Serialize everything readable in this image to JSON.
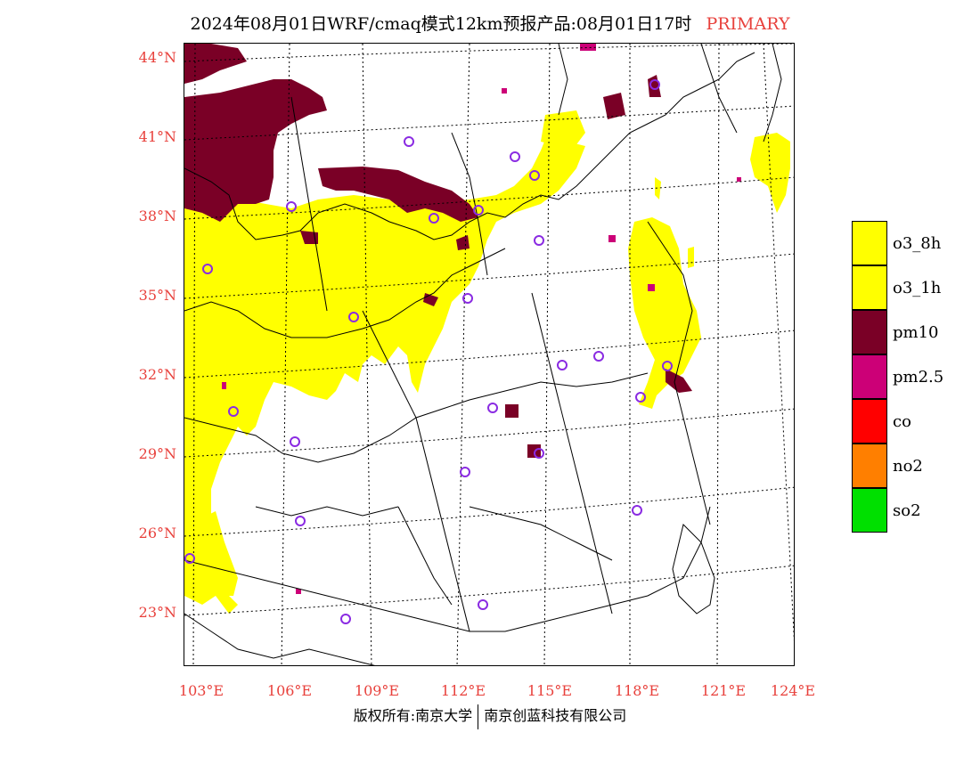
{
  "title": {
    "main": "2024年08月01日WRF/cmaq模式12km预报产品:08月01日17时",
    "tag": "PRIMARY"
  },
  "latitude_labels": [
    "44°N",
    "41°N",
    "38°N",
    "35°N",
    "32°N",
    "29°N",
    "26°N",
    "23°N"
  ],
  "longitude_labels": [
    "103°E",
    "106°E",
    "109°E",
    "112°E",
    "115°E",
    "118°E",
    "121°E",
    "124°E"
  ],
  "legend": [
    {
      "label": "o3_8h",
      "color": "#ffff00"
    },
    {
      "label": "o3_1h",
      "color": "#ffff00"
    },
    {
      "label": "pm10",
      "color": "#7a0026"
    },
    {
      "label": "pm2.5",
      "color": "#cc0077"
    },
    {
      "label": "co",
      "color": "#ff0000"
    },
    {
      "label": "no2",
      "color": "#ff7f00"
    },
    {
      "label": "so2",
      "color": "#00e000"
    }
  ],
  "footer": {
    "left": "版权所有:南京大学",
    "right": "南京创蓝科技有限公司"
  },
  "colors": {
    "o3": "#ffff00",
    "pm10": "#7a0026",
    "pm25": "#cc0077",
    "station": "#8a2be2",
    "axis_label": "#e8413c"
  }
}
